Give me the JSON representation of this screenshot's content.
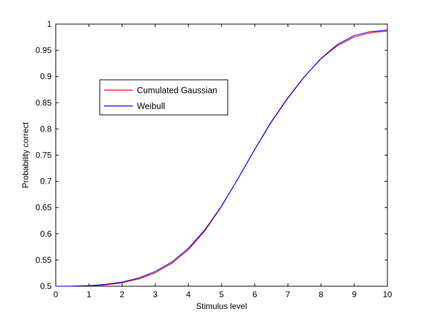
{
  "chart_data": {
    "type": "line",
    "title": "",
    "xlabel": "Stimulus level",
    "ylabel": "Probability correct",
    "xlim": [
      0,
      10
    ],
    "ylim": [
      0.5,
      1
    ],
    "grid": false,
    "legend_position": "upper-left",
    "xticks": [
      "0",
      "1",
      "2",
      "3",
      "4",
      "5",
      "6",
      "7",
      "8",
      "9",
      "10"
    ],
    "yticks": [
      "0.5",
      "0.55",
      "0.6",
      "0.65",
      "0.7",
      "0.75",
      "0.8",
      "0.85",
      "0.9",
      "0.95",
      "1"
    ],
    "series": [
      {
        "name": "Cumulated Gaussian",
        "color": "#ff0000",
        "x": [
          0,
          0.5,
          1,
          1.5,
          2,
          2.5,
          3,
          3.5,
          4,
          4.5,
          5,
          5.5,
          6,
          6.5,
          7,
          7.5,
          8,
          8.5,
          9,
          9.5,
          10
        ],
        "y": [
          0.5,
          0.5002,
          0.5008,
          0.5024,
          0.5064,
          0.5137,
          0.5255,
          0.5435,
          0.5696,
          0.6059,
          0.6523,
          0.7057,
          0.7613,
          0.8142,
          0.8598,
          0.9001,
          0.9339,
          0.9591,
          0.9752,
          0.9834,
          0.987
        ]
      },
      {
        "name": "Weibull",
        "color": "#0000ff",
        "x": [
          0,
          0.5,
          1,
          1.5,
          2,
          2.5,
          3,
          3.5,
          4,
          4.5,
          5,
          5.5,
          6,
          6.5,
          7,
          7.5,
          8,
          8.5,
          9,
          9.5,
          10
        ],
        "y": [
          0.5,
          0.5001,
          0.5011,
          0.5035,
          0.508,
          0.5157,
          0.528,
          0.5461,
          0.5724,
          0.608,
          0.6532,
          0.7057,
          0.7608,
          0.8132,
          0.8587,
          0.8997,
          0.9347,
          0.9614,
          0.9782,
          0.9857,
          0.9885
        ]
      }
    ]
  }
}
